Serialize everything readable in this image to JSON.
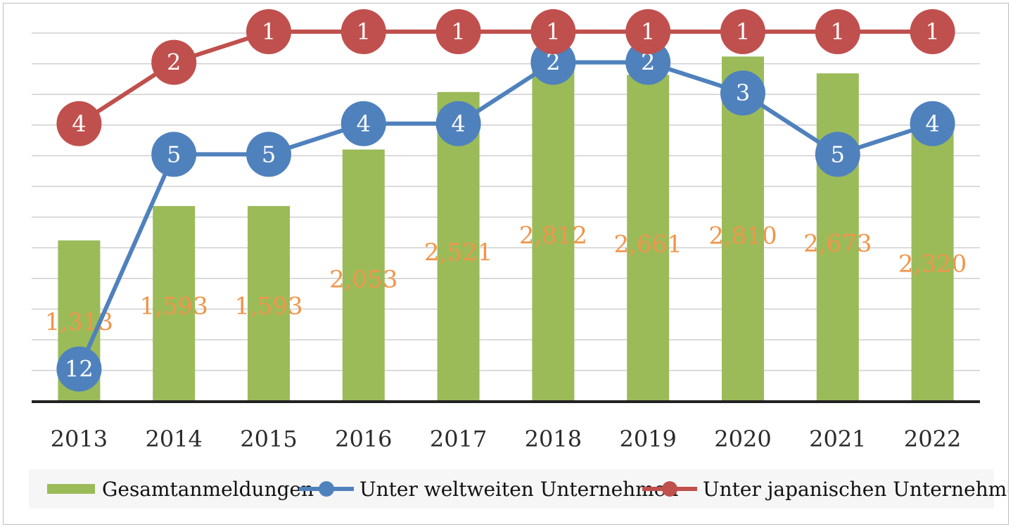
{
  "chart_data": {
    "type": "bar",
    "categories": [
      "2013",
      "2014",
      "2015",
      "2016",
      "2017",
      "2018",
      "2019",
      "2020",
      "2021",
      "2022"
    ],
    "bar_series": {
      "name": "Gesamtanmeldungen",
      "values": [
        1313,
        1593,
        1593,
        2053,
        2521,
        2812,
        2661,
        2810,
        2673,
        2320
      ],
      "labels": [
        "1,313",
        "1,593",
        "1,593",
        "2,053",
        "2,521",
        "2,812",
        "2,661",
        "2,810",
        "2,673",
        "2,320"
      ],
      "color": "#9bbb59",
      "label_color": "#f0954a"
    },
    "line_series": [
      {
        "name": "Unter weltweiten Unternehmen",
        "values": [
          12,
          5,
          5,
          4,
          4,
          2,
          2,
          3,
          5,
          4
        ],
        "color": "#4f81bd"
      },
      {
        "name": "Unter japanischen Unternehmen",
        "values": [
          4,
          2,
          1,
          1,
          1,
          1,
          1,
          1,
          1,
          1
        ],
        "color": "#c0504d"
      }
    ],
    "rank_axis": {
      "reversed": true,
      "min": 1,
      "max": 12
    },
    "grid": true,
    "legend_position": "bottom"
  }
}
